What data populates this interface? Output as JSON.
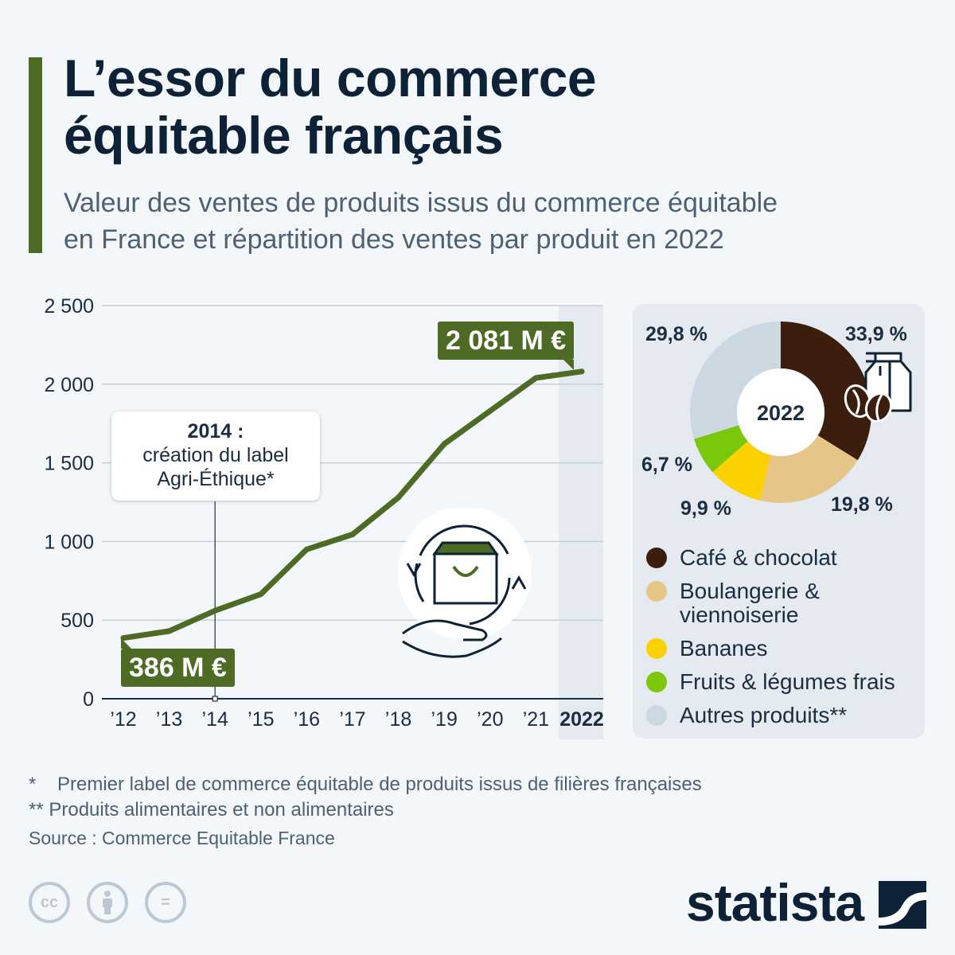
{
  "header": {
    "title_line1": "L’essor du commerce",
    "title_line2": "équitable français",
    "subtitle_line1": "Valeur des ventes de produits issus du commerce équitable",
    "subtitle_line2": "en France et répartition des ventes par produit en 2022"
  },
  "chart_data": [
    {
      "type": "line",
      "x": [
        "’12",
        "’13",
        "’14",
        "’15",
        "’16",
        "’17",
        "’18",
        "’19",
        "’20",
        "’21",
        "2022"
      ],
      "series": [
        {
          "values": [
            386,
            430,
            560,
            665,
            950,
            1045,
            1280,
            1620,
            1830,
            2040,
            2081
          ]
        }
      ],
      "ylim": [
        0,
        2500
      ],
      "yticks": [
        0,
        500,
        1000,
        1500,
        2000,
        2500
      ],
      "ytick_labels": [
        "0",
        "500",
        "1 000",
        "1 500",
        "2 000",
        "2 500"
      ],
      "grid": true,
      "color": "#4e6b26",
      "highlight_category": "2022",
      "start_label": "386 M €",
      "end_label": "2 081 M €",
      "annotation": {
        "year": "2014 :",
        "line2": "création du label",
        "line3": "Agri-Éthique*"
      }
    },
    {
      "type": "pie",
      "center_label": "2022",
      "categories": [
        "Café & chocolat",
        "Boulangerie & viennoiserie",
        "Bananes",
        "Fruits & légumes frais",
        "Autres produits**"
      ],
      "values": [
        33.9,
        19.8,
        9.9,
        6.7,
        29.8
      ],
      "value_labels": [
        "33,9 %",
        "19,8 %",
        "9,9 %",
        "6,7 %",
        "29,8 %"
      ],
      "colors": [
        "#3b1e0d",
        "#e6c589",
        "#fcd100",
        "#7ac70c",
        "#ccd8e1"
      ],
      "legend_lines": {
        "boulangerie_line1": "Boulangerie &",
        "boulangerie_line2": "viennoiserie"
      }
    }
  ],
  "footer": {
    "note1_mark": "*",
    "note1": "Premier label de commerce équitable de produits issus de filières françaises",
    "note2": "** Produits alimentaires et non alimentaires",
    "source": "Source : Commerce Equitable France",
    "cc_label": "cc",
    "eq_label": "=",
    "logo": "statista"
  },
  "icons": [
    "shopping-bag-cycle-icon",
    "coffee-bag-beans-icon",
    "cc-icon",
    "attribution-icon",
    "no-derivatives-icon",
    "statista-logo-icon"
  ]
}
